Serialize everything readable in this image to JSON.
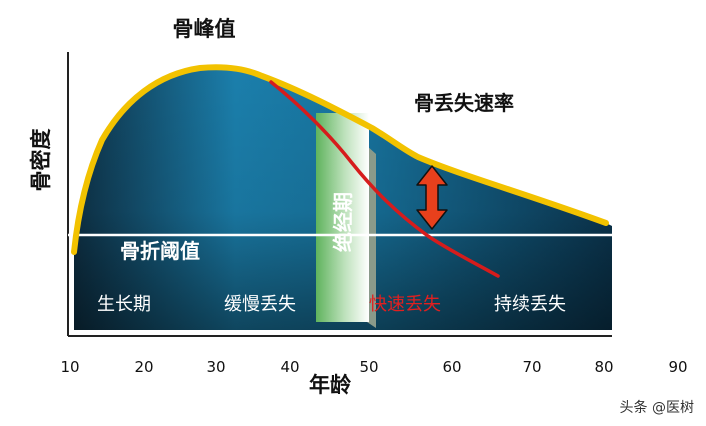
{
  "diagram": {
    "title_peak": "骨峰值",
    "ylabel": "骨密度",
    "xlabel": "年龄",
    "loss_rate": "骨丢失速率",
    "threshold": "骨折阈值",
    "menopause": "绝经期",
    "stages": {
      "growth": "生长期",
      "slow_loss": "缓慢丢失",
      "fast_loss": "快速丢失",
      "continuous_loss": "持续丢失"
    },
    "x_ticks": [
      "10",
      "20",
      "30",
      "40",
      "50",
      "60",
      "70",
      "80",
      "90"
    ],
    "watermark": "头条 @医树"
  },
  "colors": {
    "curve": "#f2c200",
    "fill_dark": "#0d2c3c",
    "fill_mid": "#1a78a4",
    "threshold_line": "#ffffff",
    "fast_loss_curve": "#d61c1c",
    "arrow": "#e8401c",
    "menopause_band": "#7cc47a"
  }
}
